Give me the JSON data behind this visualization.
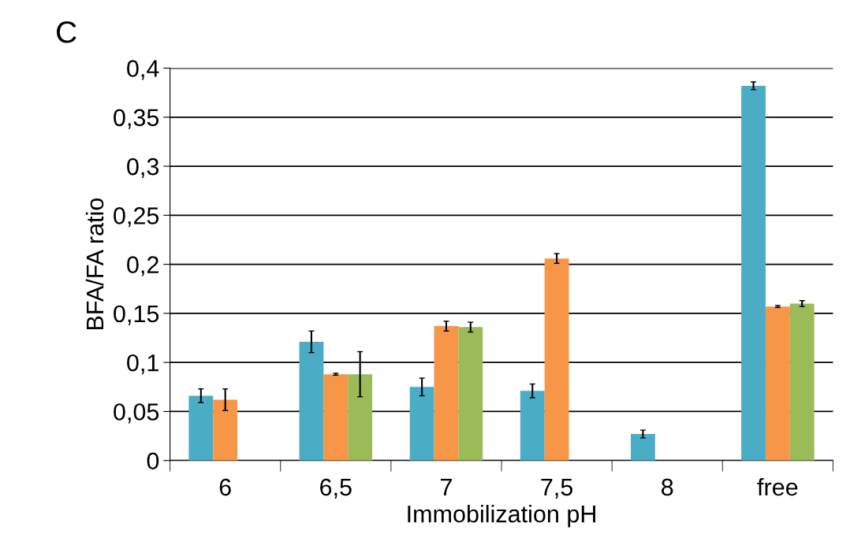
{
  "chart_data": {
    "type": "bar",
    "xlabel": "Immobilization pH",
    "ylabel": "BFA/FA ratio",
    "annotations": [
      "C"
    ],
    "categories": [
      "6",
      "6,5",
      "7",
      "7,5",
      "8",
      "free"
    ],
    "series": [
      {
        "color": "#4bacc6",
        "values": [
          0.066,
          0.121,
          0.075,
          0.071,
          0.027,
          0.382
        ],
        "errors": [
          0.007,
          0.011,
          0.009,
          0.007,
          0.004,
          0.004
        ]
      },
      {
        "color": "#f79646",
        "values": [
          0.062,
          0.088,
          0.137,
          0.206,
          null,
          0.157
        ],
        "errors": [
          0.011,
          0.001,
          0.005,
          0.005,
          null,
          0.001
        ]
      },
      {
        "color": "#9bbb59",
        "values": [
          null,
          0.088,
          0.136,
          null,
          null,
          0.16
        ],
        "errors": [
          null,
          0.023,
          0.005,
          null,
          null,
          0.003
        ]
      }
    ],
    "ylim": [
      0,
      0.4
    ],
    "yticks": [
      0,
      {
        "value": 0.05,
        "label": "0,05"
      },
      {
        "value": 0.1,
        "label": "0,1"
      },
      {
        "value": 0.15,
        "label": "0,15"
      },
      {
        "value": 0.2,
        "label": "0,2"
      },
      {
        "value": 0.25,
        "label": "0,25"
      },
      {
        "value": 0.3,
        "label": "0,3"
      },
      {
        "value": 0.35,
        "label": "0,35"
      },
      {
        "value": 0.4,
        "label": "0,4"
      }
    ],
    "grid": "y",
    "legend": false
  }
}
